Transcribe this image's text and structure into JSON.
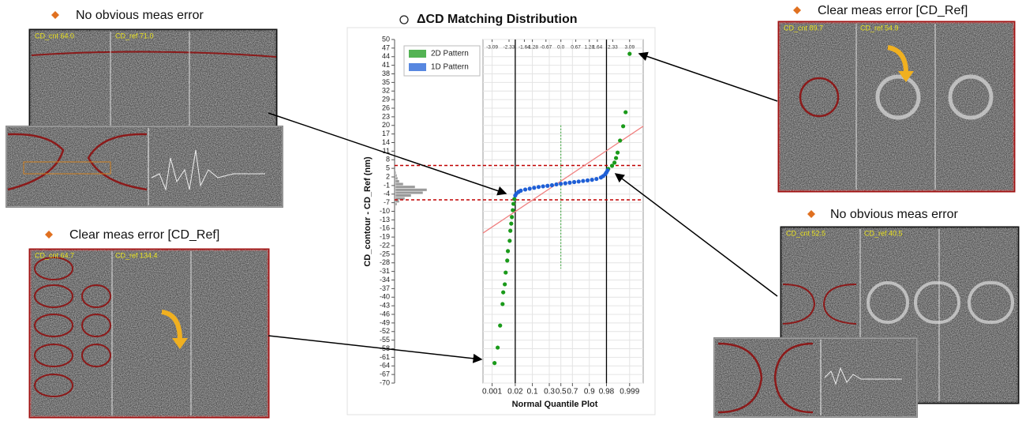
{
  "chart_data": {
    "type": "scatter",
    "title": "ΔCD Matching Distribution",
    "x_label": "Normal Quantile Plot",
    "y_label": "CD_contour - CD_Ref (nm)",
    "xlim": [
      -3.5,
      3.7
    ],
    "ylim": [
      -70,
      50
    ],
    "yticks": [
      50,
      47,
      44,
      41,
      38,
      35,
      32,
      29,
      26,
      23,
      20,
      17,
      14,
      11,
      8,
      5,
      2,
      -1,
      -4,
      -7,
      -10,
      -13,
      -16,
      -19,
      -22,
      -25,
      -28,
      -31,
      -34,
      -37,
      -40,
      -43,
      -46,
      -49,
      -52,
      -55,
      -58,
      -61,
      -64,
      -67,
      -70
    ],
    "xticks": [
      {
        "value": -3.09,
        "label": "0.001"
      },
      {
        "value": -2.05,
        "label": "0.02"
      },
      {
        "value": -1.28,
        "label": "0.1"
      },
      {
        "value": -0.52,
        "label": "0.3"
      },
      {
        "value": 0,
        "label": "0.5"
      },
      {
        "value": 0.52,
        "label": "0.7"
      },
      {
        "value": 1.28,
        "label": "0.9"
      },
      {
        "value": 2.05,
        "label": "0.98"
      },
      {
        "value": 3.09,
        "label": "0.999"
      }
    ],
    "x2ticks": [
      -3.09,
      -2.33,
      -1.64,
      -1.28,
      -0.67,
      {
        "value": 0,
        "label": "0.0"
      },
      0.67,
      1.28,
      1.64,
      2.33,
      3.09
    ],
    "grid": true,
    "legend": "upper left",
    "limit_lines": {
      "values": [
        -2.05,
        2.05
      ],
      "color": "#000000"
    },
    "center_line": {
      "value": 0,
      "color": "#2ca02c"
    },
    "ref_lines": {
      "values": [
        6,
        -6
      ],
      "color": "#c00000"
    },
    "fit_line": {
      "x": [
        -3.5,
        3.7
      ],
      "y": [
        -17.6,
        19.7
      ],
      "color": "#f08080"
    },
    "histogram": {
      "bins": [
        -8,
        -7,
        -6,
        -5,
        -4,
        -3,
        -2,
        -1,
        0,
        1,
        2,
        3,
        4
      ],
      "counts": [
        2,
        5,
        12,
        20,
        35,
        40,
        25,
        10,
        5,
        3,
        2,
        1
      ],
      "color": "#9a9a9a"
    },
    "series": [
      {
        "name": "2D Pattern",
        "color": "#1a9a1a",
        "x": [
          -2.98,
          -2.84,
          -2.73,
          -2.62,
          -2.59,
          -2.52,
          -2.48,
          -2.41,
          -2.38,
          -2.3,
          -2.27,
          -2.23,
          -2.2,
          -2.16,
          -2.13,
          -2.09,
          2.13,
          2.3,
          2.41,
          2.48,
          2.55,
          2.66,
          2.8,
          2.91,
          3.09
        ],
        "values": [
          -63,
          -57.6,
          -49.9,
          -42.4,
          -38.3,
          -35.5,
          -31.4,
          -27.2,
          -23.9,
          -20.3,
          -16.8,
          -14.3,
          -12,
          -9.6,
          -7.4,
          -5.7,
          4.8,
          5.9,
          7,
          8.6,
          10.5,
          14.7,
          19.7,
          24.6,
          45
        ]
      },
      {
        "name": "1D Pattern",
        "color": "#1f5fd6",
        "x": [
          -2.05,
          -2.0,
          -1.9,
          -1.8,
          -1.6,
          -1.4,
          -1.2,
          -1.0,
          -0.8,
          -0.6,
          -0.4,
          -0.2,
          0,
          0.2,
          0.4,
          0.6,
          0.8,
          1.0,
          1.2,
          1.4,
          1.6,
          1.8,
          1.9,
          2.0,
          2.05,
          2.1
        ],
        "values": [
          -4.5,
          -3.8,
          -3.2,
          -2.8,
          -2.4,
          -2.1,
          -1.8,
          -1.5,
          -1.3,
          -1.1,
          -0.9,
          -0.6,
          -0.4,
          -0.2,
          0,
          0.2,
          0.4,
          0.6,
          0.8,
          1.0,
          1.3,
          1.8,
          2.3,
          3.0,
          3.6,
          4.3
        ]
      }
    ]
  },
  "panels": [
    {
      "caption": "No obvious meas error",
      "labels": [
        "CD_cnt 64.0",
        "CD_ref 71.0"
      ]
    },
    {
      "caption": "Clear meas error [CD_Ref]",
      "labels": [
        "CD_cnt 64.7",
        "CD_ref 134.4"
      ]
    },
    {
      "caption": "Clear meas error [CD_Ref]",
      "labels": [
        "CD_cnt 89.7",
        "CD_ref 54.9"
      ]
    },
    {
      "caption": "No obvious meas error",
      "labels": [
        "CD_cnt 52.5",
        "CD_ref 40.5"
      ]
    }
  ]
}
